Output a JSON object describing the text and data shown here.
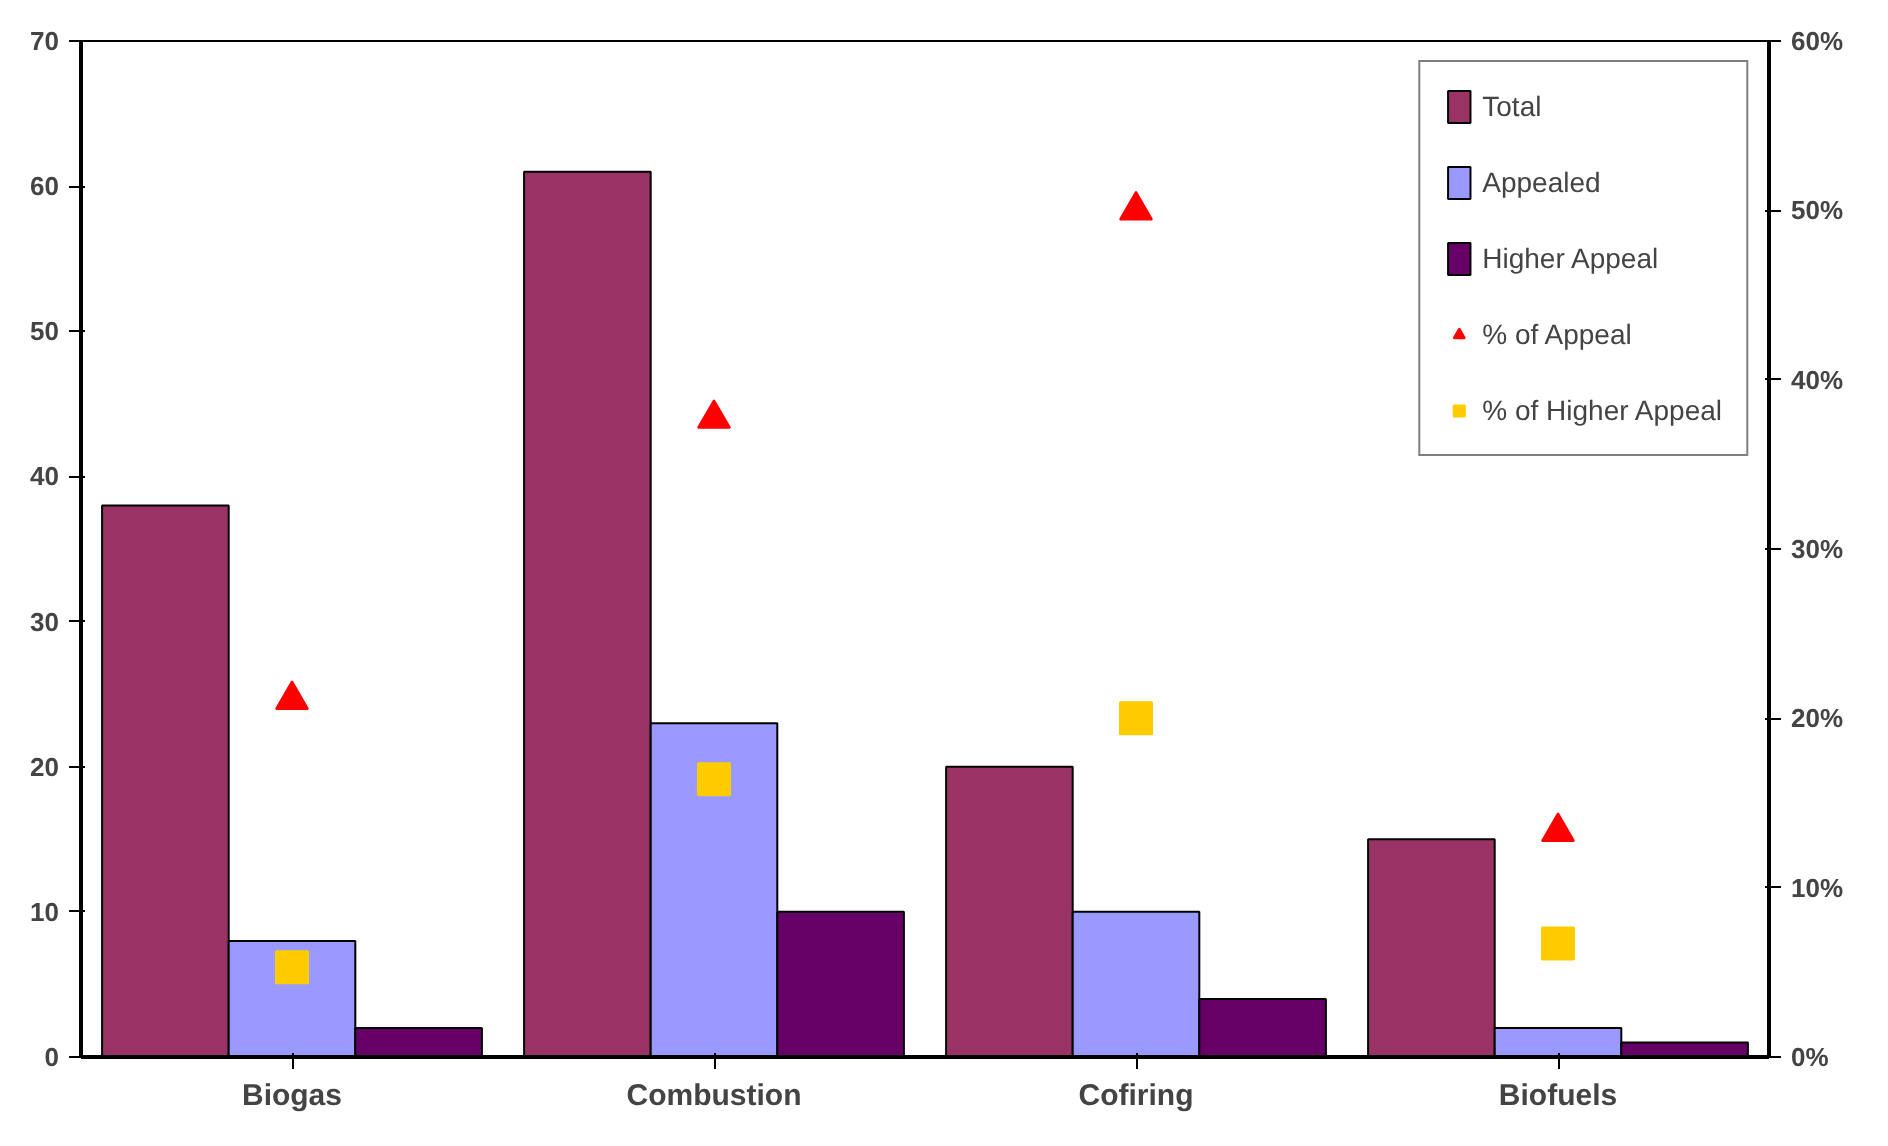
{
  "chart_data": {
    "type": "bar",
    "categories": [
      "Biogas",
      "Combustion",
      "Cofiring",
      "Biofuels"
    ],
    "series": [
      {
        "name": "Total",
        "color": "#993366",
        "values": [
          38,
          61,
          20,
          15
        ]
      },
      {
        "name": "Appealed",
        "color": "#9999ff",
        "values": [
          8,
          23,
          10,
          2
        ]
      },
      {
        "name": "Higher Appeal",
        "color": "#660066",
        "values": [
          2,
          10,
          4,
          1
        ]
      },
      {
        "name": "% of Appeal",
        "type": "scatter",
        "marker": "triangle",
        "axis": "y2",
        "color": "#ff0000",
        "values": [
          21.1,
          37.7,
          50,
          13.3
        ]
      },
      {
        "name": "% of Higher Appeal",
        "type": "scatter",
        "marker": "square",
        "axis": "y2",
        "color": "#ffcc00",
        "values": [
          5.3,
          16.4,
          20,
          6.7
        ]
      }
    ],
    "ylim": [
      0,
      70
    ],
    "yticks": [
      0,
      10,
      20,
      30,
      40,
      50,
      60,
      70
    ],
    "y2lim": [
      0,
      60
    ],
    "y2ticks": [
      {
        "value": 0,
        "label": "0%"
      },
      {
        "value": 10,
        "label": "10%"
      },
      {
        "value": 20,
        "label": "20%"
      },
      {
        "value": 30,
        "label": "30%"
      },
      {
        "value": 40,
        "label": "40%"
      },
      {
        "value": 50,
        "label": "50%"
      },
      {
        "value": 60,
        "label": "60%"
      }
    ],
    "grid": false,
    "legend": "top right"
  }
}
